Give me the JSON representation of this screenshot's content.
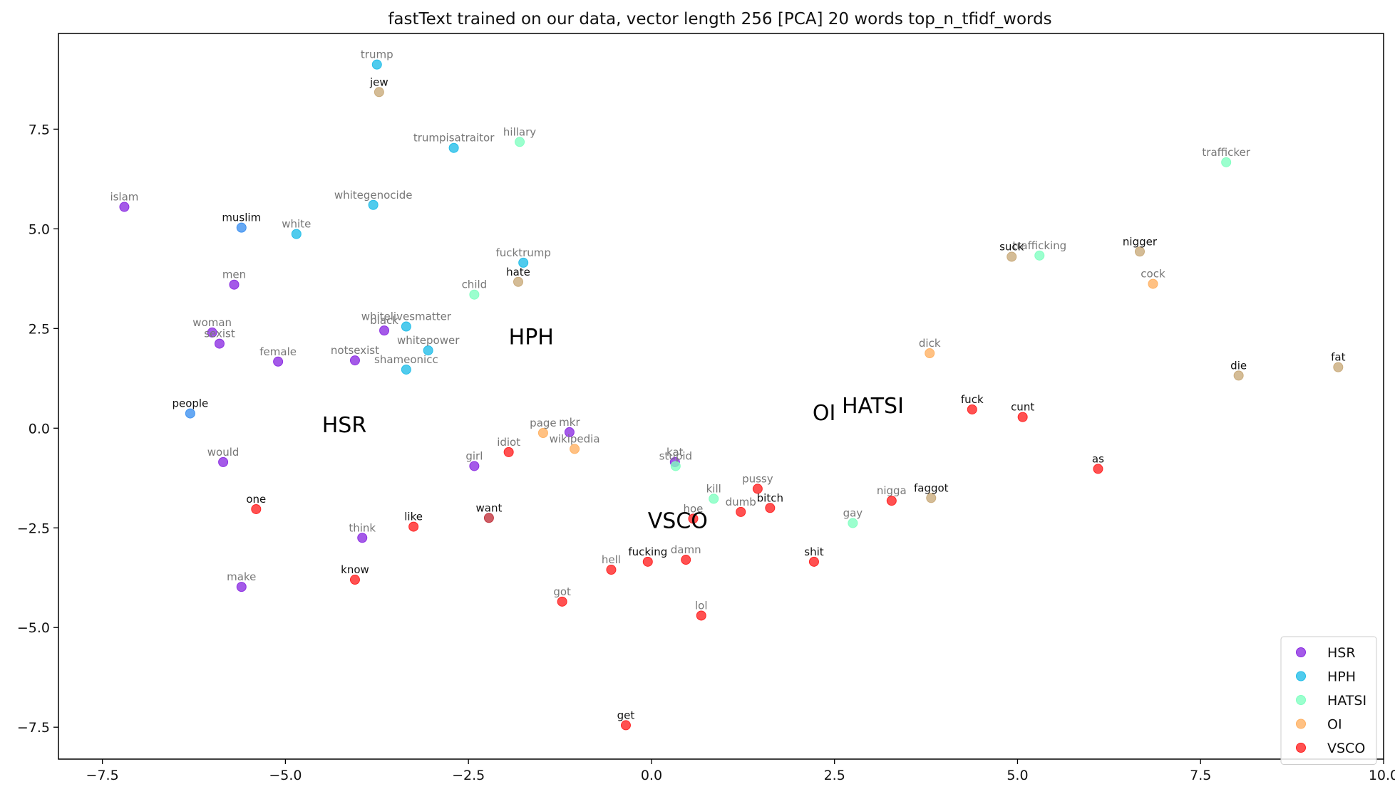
{
  "chart_data": {
    "type": "scatter",
    "title": "fastText trained on our data, vector length 256 [PCA] 20 words top_n_tfidf_words",
    "xlabel": "",
    "ylabel": "",
    "xlim": [
      -8.1,
      10.0
    ],
    "ylim": [
      -8.3,
      9.9
    ],
    "xticks": [
      -7.5,
      -5.0,
      -2.5,
      0.0,
      2.5,
      5.0,
      7.5,
      10.0
    ],
    "yticks": [
      -7.5,
      -5.0,
      -2.5,
      0.0,
      2.5,
      5.0,
      7.5
    ],
    "xtick_labels": [
      "−7.5",
      "−5.0",
      "−2.5",
      "0.0",
      "2.5",
      "5.0",
      "7.5",
      "10.0"
    ],
    "ytick_labels": [
      "−7.5",
      "−5.0",
      "−2.5",
      "0.0",
      "2.5",
      "5.0",
      "7.5"
    ],
    "grid": false,
    "legend_position": "bottom-right",
    "series": [
      {
        "name": "HSR",
        "color": "#8a2be2",
        "points": [
          {
            "label": "islam",
            "x": -7.2,
            "y": 5.55
          },
          {
            "label": "men",
            "x": -5.7,
            "y": 3.6
          },
          {
            "label": "woman",
            "x": -6.0,
            "y": 2.4
          },
          {
            "label": "sexist",
            "x": -5.9,
            "y": 2.12
          },
          {
            "label": "female",
            "x": -5.1,
            "y": 1.67
          },
          {
            "label": "black",
            "x": -3.65,
            "y": 2.45
          },
          {
            "label": "notsexist",
            "x": -4.05,
            "y": 1.7
          },
          {
            "label": "would",
            "x": -5.85,
            "y": -0.85
          },
          {
            "label": "think",
            "x": -3.95,
            "y": -2.75
          },
          {
            "label": "make",
            "x": -5.6,
            "y": -3.98
          },
          {
            "label": "girl",
            "x": -2.42,
            "y": -0.95
          },
          {
            "label": "mkr",
            "x": -1.12,
            "y": -0.1
          },
          {
            "label": "kat",
            "x": 0.32,
            "y": -0.85
          }
        ]
      },
      {
        "name": "HPH",
        "color": "#1fbde8",
        "points": [
          {
            "label": "trump",
            "x": -3.75,
            "y": 9.12
          },
          {
            "label": "trumpisatraitor",
            "x": -2.7,
            "y": 7.03
          },
          {
            "label": "whitegenocide",
            "x": -3.8,
            "y": 5.6
          },
          {
            "label": "white",
            "x": -4.85,
            "y": 4.87
          },
          {
            "label": "fucktrump",
            "x": -1.75,
            "y": 4.15
          },
          {
            "label": "whitelivesmatter",
            "x": -3.35,
            "y": 2.55
          },
          {
            "label": "whitepower",
            "x": -3.05,
            "y": 1.95
          },
          {
            "label": "shameonicc",
            "x": -3.35,
            "y": 1.47
          }
        ]
      },
      {
        "name": "HATSI",
        "color": "#7fffc0",
        "points": [
          {
            "label": "hillary",
            "x": -1.8,
            "y": 7.18
          },
          {
            "label": "trafficker",
            "x": 7.85,
            "y": 6.67
          },
          {
            "label": "trafficking",
            "x": 5.3,
            "y": 4.33
          },
          {
            "label": "child",
            "x": -2.42,
            "y": 3.35
          },
          {
            "label": "stupid",
            "x": 0.33,
            "y": -0.95
          },
          {
            "label": "kill",
            "x": 0.85,
            "y": -1.77
          },
          {
            "label": "gay",
            "x": 2.75,
            "y": -2.38
          }
        ]
      },
      {
        "name": "OI",
        "color": "#ffb060",
        "points": [
          {
            "label": "cock",
            "x": 6.85,
            "y": 3.62
          },
          {
            "label": "dick",
            "x": 3.8,
            "y": 1.88
          },
          {
            "label": "page",
            "x": -1.48,
            "y": -0.12
          },
          {
            "label": "wikipedia",
            "x": -1.05,
            "y": -0.52
          }
        ]
      },
      {
        "name": "VSCO",
        "color": "#ff2020",
        "points": [
          {
            "label": "one",
            "x": -5.4,
            "y": -2.03
          },
          {
            "label": "know",
            "x": -4.05,
            "y": -3.8
          },
          {
            "label": "like",
            "x": -3.25,
            "y": -2.47
          },
          {
            "label": "idiot",
            "x": -1.95,
            "y": -0.6
          },
          {
            "label": "hell",
            "x": -0.55,
            "y": -3.55
          },
          {
            "label": "got",
            "x": -1.22,
            "y": -4.35
          },
          {
            "label": "fucking",
            "x": -0.05,
            "y": -3.35
          },
          {
            "label": "damn",
            "x": 0.47,
            "y": -3.3
          },
          {
            "label": "hoe",
            "x": 0.57,
            "y": -2.27
          },
          {
            "label": "lol",
            "x": 0.68,
            "y": -4.7
          },
          {
            "label": "get",
            "x": -0.35,
            "y": -7.45
          },
          {
            "label": "dumb",
            "x": 1.22,
            "y": -2.1
          },
          {
            "label": "pussy",
            "x": 1.45,
            "y": -1.52
          },
          {
            "label": "bitch",
            "x": 1.62,
            "y": -2.0
          },
          {
            "label": "shit",
            "x": 2.22,
            "y": -3.35
          },
          {
            "label": "nigga",
            "x": 3.28,
            "y": -1.82
          },
          {
            "label": "fuck",
            "x": 4.38,
            "y": 0.47
          },
          {
            "label": "cunt",
            "x": 5.07,
            "y": 0.28
          },
          {
            "label": "as",
            "x": 6.1,
            "y": -1.02
          }
        ]
      },
      {
        "name": "",
        "color": "#3b8ff0",
        "in_legend": false,
        "points": [
          {
            "label": "muslim",
            "x": -5.6,
            "y": 5.03
          },
          {
            "label": "people",
            "x": -6.3,
            "y": 0.37
          }
        ]
      },
      {
        "name": "",
        "color": "#c8a978",
        "in_legend": false,
        "points": [
          {
            "label": "jew",
            "x": -3.72,
            "y": 8.43
          },
          {
            "label": "hate",
            "x": -1.82,
            "y": 3.67
          },
          {
            "label": "suck",
            "x": 4.92,
            "y": 4.3
          },
          {
            "label": "nigger",
            "x": 6.67,
            "y": 4.43
          },
          {
            "label": "die",
            "x": 8.02,
            "y": 1.32
          },
          {
            "label": "fat",
            "x": 9.38,
            "y": 1.53
          },
          {
            "label": "faggot",
            "x": 3.82,
            "y": -1.75
          }
        ]
      },
      {
        "name": "",
        "color": "#c0303a",
        "in_legend": false,
        "points": [
          {
            "label": "want",
            "x": -2.22,
            "y": -2.25
          }
        ]
      }
    ],
    "bold_labels": [
      "muslim",
      "jew",
      "hate",
      "suck",
      "nigger",
      "die",
      "fat",
      "faggot",
      "people",
      "one",
      "know",
      "like",
      "want",
      "fucking",
      "get",
      "bitch",
      "shit",
      "fuck",
      "cunt",
      "as"
    ],
    "cluster_labels": [
      {
        "text": "HPH",
        "x": -1.95,
        "y": 2.1
      },
      {
        "text": "HSR",
        "x": -4.5,
        "y": -0.1
      },
      {
        "text": "OI",
        "x": 2.2,
        "y": 0.2
      },
      {
        "text": "HATSI",
        "x": 2.6,
        "y": 0.38
      },
      {
        "text": "VSCO",
        "x": -0.05,
        "y": -2.5
      }
    ]
  }
}
